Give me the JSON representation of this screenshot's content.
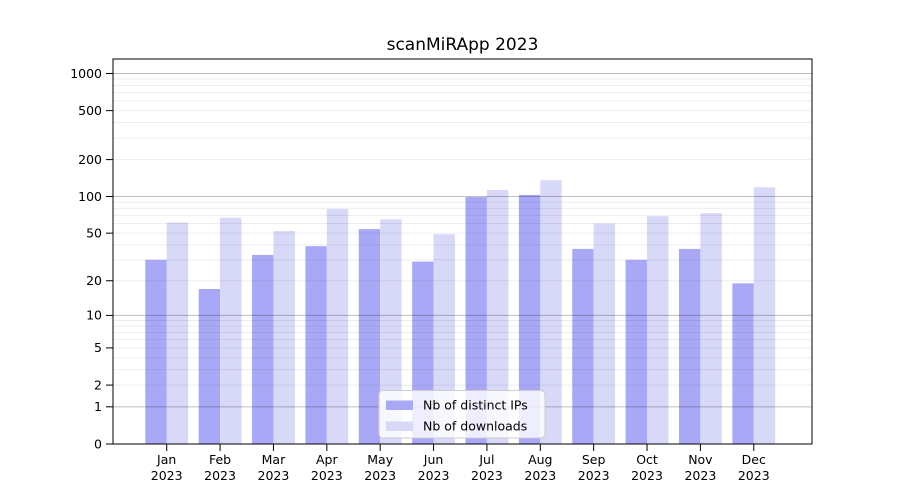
{
  "window": {
    "background": "#ffffff"
  },
  "chart_data": {
    "type": "bar",
    "title": "scanMiRApp 2023",
    "categories": {
      "months": [
        "Jan",
        "Feb",
        "Mar",
        "Apr",
        "May",
        "Jun",
        "Jul",
        "Aug",
        "Sep",
        "Oct",
        "Nov",
        "Dec"
      ],
      "year": "2023"
    },
    "series": [
      {
        "name": "Nb of distinct IPs",
        "color": "#a8a8f7",
        "values": [
          30,
          17,
          33,
          39,
          54,
          29,
          99,
          103,
          37,
          30,
          37,
          19
        ]
      },
      {
        "name": "Nb of downloads",
        "color": "#d8d8f8",
        "values": [
          61,
          67,
          52,
          79,
          65,
          49,
          113,
          136,
          60,
          69,
          73,
          119
        ]
      }
    ],
    "y_axis": {
      "scale": "pseudo-log (log10(value+1))",
      "ticks": [
        1000,
        500,
        200,
        100,
        50,
        20,
        10,
        5,
        2,
        1,
        0
      ],
      "range": [
        0,
        1300
      ]
    },
    "x_axis": {
      "tick_line1": "month",
      "tick_line2": "2023"
    },
    "legend": {
      "position": "lower center"
    },
    "grid": {
      "major": "on",
      "minor": "on"
    },
    "colors": {
      "major_grid": "rgba(0,0,0,0.25)",
      "minor_grid": "rgba(0,0,0,0.07)",
      "spine": "#000000",
      "text": "#000000",
      "legend_border": "#cccccc",
      "legend_background": "rgba(255,255,255,0.8)"
    }
  }
}
